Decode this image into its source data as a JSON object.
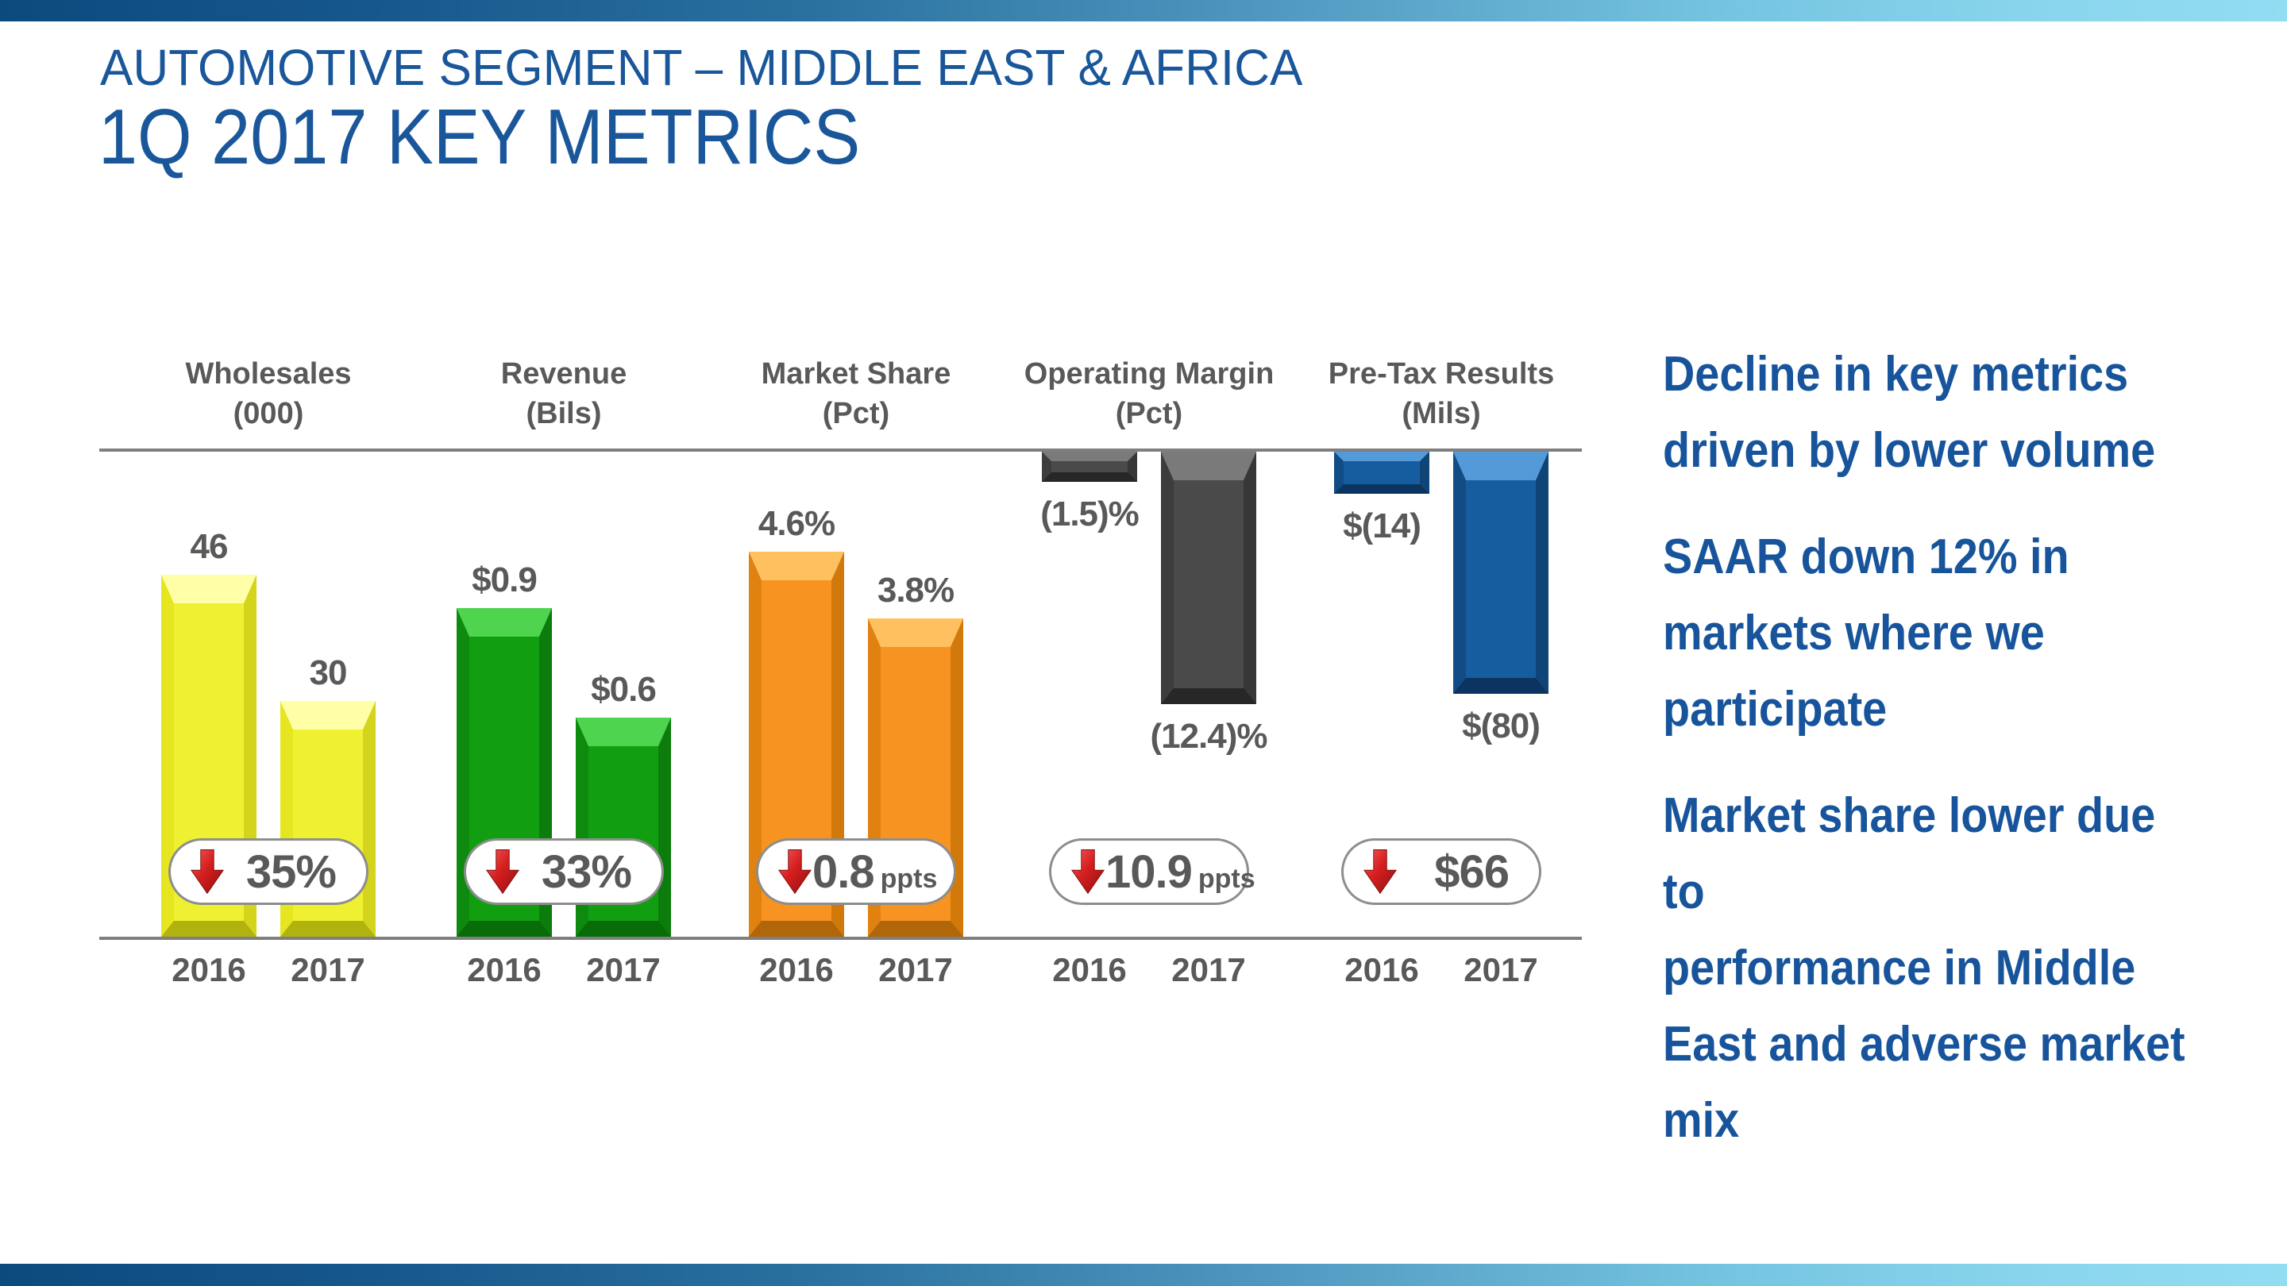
{
  "slide": {
    "kicker": "AUTOMOTIVE SEGMENT – MIDDLE EAST & AFRICA",
    "title": "1Q 2017 KEY METRICS"
  },
  "chart_data": {
    "type": "bar",
    "categories": [
      "2016",
      "2017"
    ],
    "y_axis": "hidden",
    "grid": false,
    "legend_position": "none",
    "negative_bars_hang_from_top_rule": true,
    "groups": [
      {
        "name": "Wholesales",
        "unit_label": "(000)",
        "values": [
          46,
          30
        ],
        "value_labels": [
          "46",
          "30"
        ],
        "change": {
          "direction": "down",
          "value": "35%",
          "unit": ""
        },
        "color": "#f0f033",
        "theme": "yellow"
      },
      {
        "name": "Revenue",
        "unit_label": "(Bils)",
        "values": [
          0.9,
          0.6
        ],
        "value_labels": [
          "$0.9",
          "$0.6"
        ],
        "change": {
          "direction": "down",
          "value": "33%",
          "unit": ""
        },
        "color": "#119f11",
        "theme": "green"
      },
      {
        "name": "Market Share",
        "unit_label": "(Pct)",
        "values": [
          4.6,
          3.8
        ],
        "value_labels": [
          "4.6%",
          "3.8%"
        ],
        "change": {
          "direction": "down",
          "value": "0.8",
          "unit": "ppts"
        },
        "color": "#f79421",
        "theme": "orange"
      },
      {
        "name": "Operating Margin",
        "unit_label": "(Pct)",
        "values": [
          -1.5,
          -12.4
        ],
        "value_labels": [
          "(1.5)%",
          "(12.4)%"
        ],
        "change": {
          "direction": "down",
          "value": "10.9",
          "unit": "ppts"
        },
        "color": "#4a4a4a",
        "theme": "gray"
      },
      {
        "name": "Pre-Tax Results",
        "unit_label": "(Mils)",
        "values": [
          -14,
          -80
        ],
        "value_labels": [
          "$(14)",
          "$(80)"
        ],
        "change": {
          "direction": "down",
          "value": "$66",
          "unit": ""
        },
        "color": "#155d9f",
        "theme": "blue"
      }
    ]
  },
  "bullets": [
    "Decline in key metrics\ndriven by lower volume",
    "SAAR down 12% in\nmarkets where we\nparticipate",
    "Market share lower due to\nperformance in Middle\nEast and adverse market\nmix"
  ],
  "colors": {
    "accent_blue": "#17549b",
    "text_gray": "#595959",
    "rule_gray": "#7f7f7f",
    "arrow_red": "#d61f1f",
    "top_gradient_left": "#0c4a7e",
    "top_gradient_right": "#93dcf2"
  }
}
